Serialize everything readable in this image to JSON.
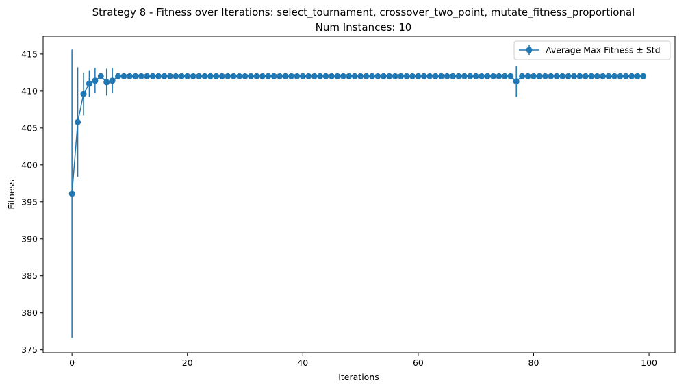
{
  "chart_data": {
    "type": "line",
    "title": "Strategy 8 - Fitness over Iterations: select_tournament, crossover_two_point, mutate_fitness_proportional",
    "subtitle": "Num Instances: 10",
    "xlabel": "Iterations",
    "ylabel": "Fitness",
    "xlim": [
      -5,
      104.5
    ],
    "ylim": [
      374.6,
      417.4
    ],
    "x_ticks": [
      0,
      20,
      40,
      60,
      80,
      100
    ],
    "y_ticks": [
      375,
      380,
      385,
      390,
      395,
      400,
      405,
      410,
      415
    ],
    "grid": false,
    "legend_position": "top-right",
    "series": [
      {
        "name": "Average Max Fitness ± Std",
        "color": "#1f77b4",
        "x": [
          0,
          1,
          2,
          3,
          4,
          5,
          6,
          7,
          8,
          9,
          10,
          11,
          12,
          13,
          14,
          15,
          16,
          17,
          18,
          19,
          20,
          21,
          22,
          23,
          24,
          25,
          26,
          27,
          28,
          29,
          30,
          31,
          32,
          33,
          34,
          35,
          36,
          37,
          38,
          39,
          40,
          41,
          42,
          43,
          44,
          45,
          46,
          47,
          48,
          49,
          50,
          51,
          52,
          53,
          54,
          55,
          56,
          57,
          58,
          59,
          60,
          61,
          62,
          63,
          64,
          65,
          66,
          67,
          68,
          69,
          70,
          71,
          72,
          73,
          74,
          75,
          76,
          77,
          78,
          79,
          80,
          81,
          82,
          83,
          84,
          85,
          86,
          87,
          88,
          89,
          90,
          91,
          92,
          93,
          94,
          95,
          96,
          97,
          98,
          99
        ],
        "y": [
          396.1,
          405.8,
          409.6,
          411.0,
          411.4,
          412.0,
          411.2,
          411.4,
          412.0,
          412.0,
          412.0,
          412.0,
          412.0,
          412.0,
          412.0,
          412.0,
          412.0,
          412.0,
          412.0,
          412.0,
          412.0,
          412.0,
          412.0,
          412.0,
          412.0,
          412.0,
          412.0,
          412.0,
          412.0,
          412.0,
          412.0,
          412.0,
          412.0,
          412.0,
          412.0,
          412.0,
          412.0,
          412.0,
          412.0,
          412.0,
          412.0,
          412.0,
          412.0,
          412.0,
          412.0,
          412.0,
          412.0,
          412.0,
          412.0,
          412.0,
          412.0,
          412.0,
          412.0,
          412.0,
          412.0,
          412.0,
          412.0,
          412.0,
          412.0,
          412.0,
          412.0,
          412.0,
          412.0,
          412.0,
          412.0,
          412.0,
          412.0,
          412.0,
          412.0,
          412.0,
          412.0,
          412.0,
          412.0,
          412.0,
          412.0,
          412.0,
          412.0,
          411.3,
          412.0,
          412.0,
          412.0,
          412.0,
          412.0,
          412.0,
          412.0,
          412.0,
          412.0,
          412.0,
          412.0,
          412.0,
          412.0,
          412.0,
          412.0,
          412.0,
          412.0,
          412.0,
          412.0,
          412.0,
          412.0,
          412.0
        ],
        "std": [
          19.5,
          7.4,
          2.9,
          1.8,
          1.7,
          0,
          1.8,
          1.7,
          0,
          0,
          0,
          0,
          0,
          0,
          0,
          0,
          0,
          0,
          0,
          0,
          0,
          0,
          0,
          0,
          0,
          0,
          0,
          0,
          0,
          0,
          0,
          0,
          0,
          0,
          0,
          0,
          0,
          0,
          0,
          0,
          0,
          0,
          0,
          0,
          0,
          0,
          0,
          0,
          0,
          0,
          0,
          0,
          0,
          0,
          0,
          0,
          0,
          0,
          0,
          0,
          0,
          0,
          0,
          0,
          0,
          0,
          0,
          0,
          0,
          0,
          0,
          0,
          0,
          0,
          0,
          0,
          0,
          2.1,
          0,
          0,
          0,
          0,
          0,
          0,
          0,
          0,
          0,
          0,
          0,
          0,
          0,
          0,
          0,
          0,
          0,
          0,
          0,
          0,
          0,
          0
        ]
      }
    ]
  }
}
